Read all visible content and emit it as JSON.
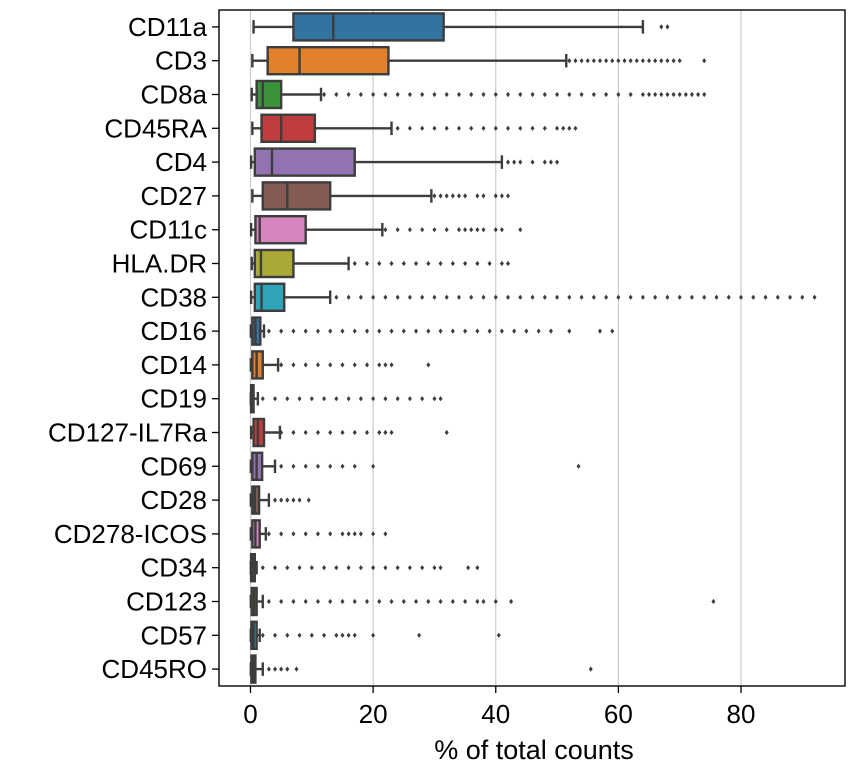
{
  "chart_data": {
    "type": "box",
    "orientation": "horizontal",
    "xlabel": "% of total counts",
    "xlim": [
      -5,
      97
    ],
    "xticks": [
      0,
      20,
      40,
      60,
      80
    ],
    "grid": "vertical",
    "categories": [
      "CD11a",
      "CD3",
      "CD8a",
      "CD45RA",
      "CD4",
      "CD27",
      "CD11c",
      "HLA.DR",
      "CD38",
      "CD16",
      "CD14",
      "CD19",
      "CD127-IL7Ra",
      "CD69",
      "CD28",
      "CD278-ICOS",
      "CD34",
      "CD123",
      "CD57",
      "CD45RO"
    ],
    "colors": [
      "#3274a1",
      "#e1812c",
      "#3a923a",
      "#c03d3e",
      "#9372b2",
      "#845b53",
      "#d684bd",
      "#a9aa35",
      "#2fa4b8",
      "#3274a1",
      "#e1812c",
      "#3a923a",
      "#c03d3e",
      "#9372b2",
      "#845b53",
      "#d684bd",
      "#7f7f7f",
      "#a9aa35",
      "#2fa4b8",
      "#3274a1"
    ],
    "boxes": [
      {
        "name": "CD11a",
        "whislo": 0.5,
        "q1": 7,
        "median": 13.5,
        "q3": 31.5,
        "whishi": 64,
        "fliers": [
          67,
          68
        ]
      },
      {
        "name": "CD3",
        "whislo": 0.3,
        "q1": 2.8,
        "median": 8,
        "q3": 22.5,
        "whishi": 51.5,
        "fliers": [
          52,
          53,
          54,
          55,
          56,
          57,
          58,
          59,
          60,
          61,
          62,
          63,
          64,
          65,
          66,
          67,
          68,
          69,
          70,
          74
        ]
      },
      {
        "name": "CD8a",
        "whislo": 0.2,
        "q1": 1,
        "median": 2,
        "q3": 5,
        "whishi": 11.5,
        "fliers": [
          12,
          14,
          16,
          18,
          20,
          22,
          24,
          26,
          28,
          30,
          32,
          34,
          36,
          38,
          40,
          42,
          44,
          46,
          48,
          50,
          52,
          54,
          56,
          58,
          60,
          62,
          64,
          65,
          66,
          67,
          68,
          69,
          70,
          71,
          72,
          73,
          74
        ]
      },
      {
        "name": "CD45RA",
        "whislo": 0.3,
        "q1": 1.8,
        "median": 5,
        "q3": 10.5,
        "whishi": 23,
        "fliers": [
          24,
          26,
          28,
          30,
          32,
          34,
          36,
          38,
          40,
          42,
          44,
          46,
          48,
          50,
          51,
          52,
          53
        ]
      },
      {
        "name": "CD4",
        "whislo": 0.1,
        "q1": 0.7,
        "median": 3.5,
        "q3": 17,
        "whishi": 41,
        "fliers": [
          42,
          43,
          44,
          46,
          48,
          49,
          50
        ]
      },
      {
        "name": "CD27",
        "whislo": 0.3,
        "q1": 2,
        "median": 6,
        "q3": 13,
        "whishi": 29.5,
        "fliers": [
          30,
          31,
          32,
          33,
          34,
          35,
          37,
          38,
          40,
          41,
          42
        ]
      },
      {
        "name": "CD11c",
        "whislo": 0.1,
        "q1": 0.8,
        "median": 1.5,
        "q3": 9,
        "whishi": 21.5,
        "fliers": [
          22,
          24,
          26,
          28,
          30,
          32,
          34,
          35,
          36,
          37,
          38,
          40,
          41,
          44
        ]
      },
      {
        "name": "HLA.DR",
        "whislo": 0.2,
        "q1": 0.7,
        "median": 1.7,
        "q3": 7,
        "whishi": 16,
        "fliers": [
          17,
          19,
          21,
          23,
          25,
          27,
          29,
          31,
          33,
          35,
          37,
          39,
          41,
          42
        ]
      },
      {
        "name": "CD38",
        "whislo": 0.1,
        "q1": 0.7,
        "median": 1.8,
        "q3": 5.5,
        "whishi": 13,
        "fliers": [
          14,
          16,
          18,
          20,
          22,
          24,
          26,
          28,
          30,
          32,
          34,
          36,
          38,
          40,
          42,
          44,
          46,
          48,
          50,
          52,
          54,
          56,
          58,
          60,
          62,
          64,
          66,
          68,
          70,
          72,
          74,
          76,
          78,
          80,
          82,
          84,
          86,
          88,
          90,
          92
        ]
      },
      {
        "name": "CD16",
        "whislo": 0.05,
        "q1": 0.3,
        "median": 0.8,
        "q3": 1.6,
        "whishi": 2.2,
        "fliers": [
          3,
          5,
          7,
          9,
          11,
          13,
          15,
          17,
          19,
          21,
          23,
          25,
          27,
          29,
          31,
          33,
          35,
          37,
          39,
          41,
          43,
          45,
          47,
          49,
          52,
          57,
          59
        ]
      },
      {
        "name": "CD14",
        "whislo": 0.05,
        "q1": 0.3,
        "median": 1,
        "q3": 2,
        "whishi": 4.5,
        "fliers": [
          5,
          7,
          9,
          11,
          13,
          15,
          17,
          19,
          21,
          22,
          23,
          29
        ]
      },
      {
        "name": "CD19",
        "whislo": 0.05,
        "q1": 0.1,
        "median": 0.2,
        "q3": 0.5,
        "whishi": 1.2,
        "fliers": [
          2,
          4,
          6,
          8,
          10,
          12,
          14,
          16,
          18,
          20,
          22,
          24,
          26,
          28,
          30,
          31
        ]
      },
      {
        "name": "CD127-IL7Ra",
        "whislo": 0.1,
        "q1": 0.5,
        "median": 1.2,
        "q3": 2.2,
        "whishi": 4.8,
        "fliers": [
          5,
          7,
          9,
          11,
          13,
          15,
          17,
          19,
          21,
          22,
          23,
          32
        ]
      },
      {
        "name": "CD69",
        "whislo": 0.05,
        "q1": 0.3,
        "median": 1,
        "q3": 1.9,
        "whishi": 4,
        "fliers": [
          5,
          7,
          9,
          11,
          13,
          15,
          17,
          20,
          53.5
        ]
      },
      {
        "name": "CD28",
        "whislo": 0.05,
        "q1": 0.3,
        "median": 0.7,
        "q3": 1.4,
        "whishi": 3,
        "fliers": [
          4,
          5,
          6,
          7,
          8,
          9.5
        ]
      },
      {
        "name": "CD278-ICOS",
        "whislo": 0.05,
        "q1": 0.3,
        "median": 0.8,
        "q3": 1.5,
        "whishi": 2.5,
        "fliers": [
          3,
          5,
          7,
          9,
          11,
          13,
          15,
          16,
          17,
          18,
          20,
          22
        ]
      },
      {
        "name": "CD34",
        "whislo": 0.05,
        "q1": 0.1,
        "median": 0.3,
        "q3": 0.7,
        "whishi": 1,
        "fliers": [
          2,
          4,
          6,
          8,
          10,
          12,
          14,
          16,
          18,
          20,
          22,
          24,
          26,
          28,
          30,
          31,
          35.5,
          37
        ]
      },
      {
        "name": "CD123",
        "whislo": 0.05,
        "q1": 0.2,
        "median": 0.6,
        "q3": 1,
        "whishi": 2,
        "fliers": [
          3,
          5,
          7,
          9,
          11,
          13,
          15,
          17,
          19,
          21,
          23,
          25,
          27,
          29,
          31,
          33,
          35,
          37,
          38,
          40,
          42.5,
          75.5
        ]
      },
      {
        "name": "CD57",
        "whislo": 0.05,
        "q1": 0.15,
        "median": 0.5,
        "q3": 1,
        "whishi": 1.5,
        "fliers": [
          2,
          4,
          6,
          8,
          10,
          12,
          14,
          15,
          16,
          17,
          20,
          27.5,
          40.5
        ]
      },
      {
        "name": "CD45RO",
        "whislo": 0.05,
        "q1": 0.15,
        "median": 0.5,
        "q3": 0.8,
        "whishi": 2,
        "fliers": [
          3,
          4,
          5,
          6,
          7.5,
          55.5
        ]
      }
    ]
  }
}
